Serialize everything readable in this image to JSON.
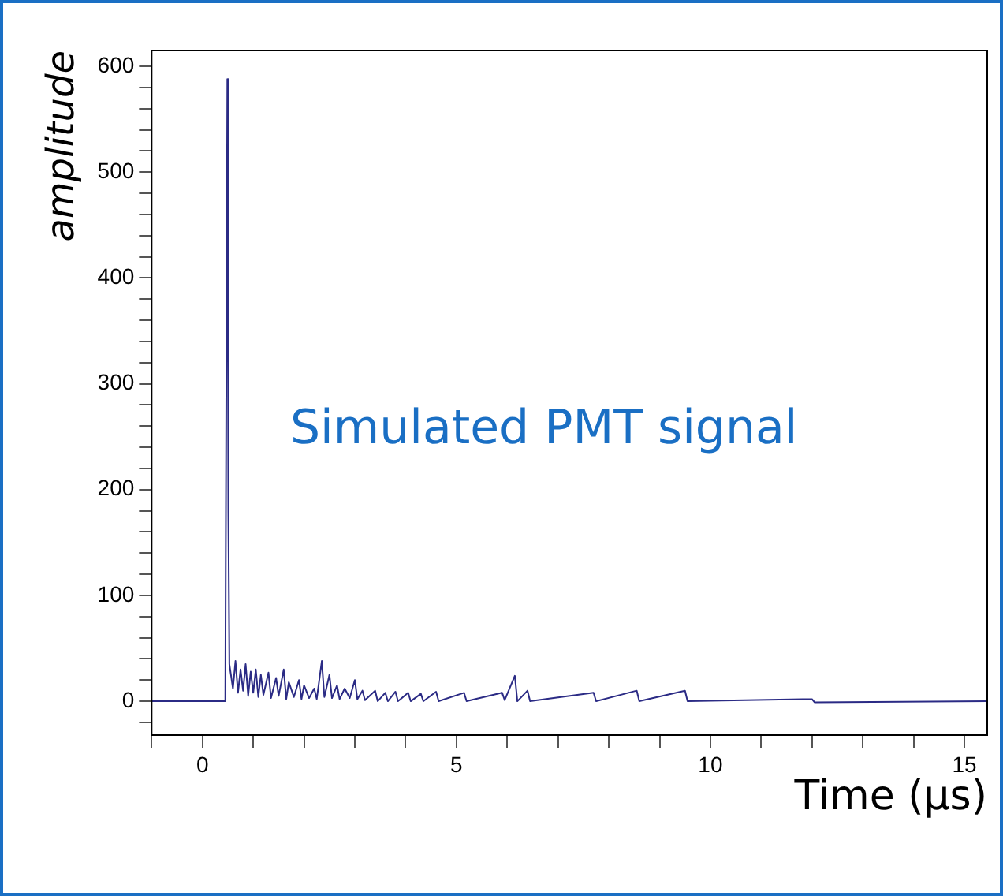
{
  "chart_data": {
    "type": "line",
    "xlabel": "Time (μs)",
    "ylabel": "amplitude",
    "annotations": [
      "Simulated PMT signal"
    ],
    "x": [
      -1,
      0.45,
      0.47,
      0.49,
      0.51,
      0.53,
      0.6,
      0.65,
      0.7,
      0.75,
      0.8,
      0.85,
      0.9,
      0.95,
      1.0,
      1.05,
      1.1,
      1.15,
      1.2,
      1.3,
      1.35,
      1.45,
      1.5,
      1.6,
      1.65,
      1.7,
      1.8,
      1.9,
      1.95,
      2.0,
      2.1,
      2.2,
      2.25,
      2.35,
      2.4,
      2.5,
      2.55,
      2.65,
      2.7,
      2.8,
      2.9,
      3.0,
      3.05,
      3.15,
      3.2,
      3.4,
      3.45,
      3.6,
      3.65,
      3.8,
      3.85,
      4.05,
      4.1,
      4.3,
      4.35,
      4.6,
      4.65,
      5.15,
      5.2,
      5.9,
      5.95,
      6.15,
      6.2,
      6.4,
      6.45,
      7.7,
      7.75,
      8.55,
      8.6,
      9.5,
      9.55,
      12,
      12.05,
      15.45
    ],
    "series": [
      {
        "color": "#2b2b85",
        "values": [
          0,
          0,
          297,
          588,
          178,
          35,
          12,
          38,
          8,
          30,
          10,
          35,
          5,
          28,
          8,
          30,
          4,
          25,
          6,
          27,
          3,
          22,
          5,
          30,
          2,
          18,
          4,
          20,
          2,
          15,
          3,
          12,
          2,
          38,
          4,
          25,
          3,
          15,
          2,
          12,
          3,
          20,
          2,
          10,
          1,
          10,
          0,
          8,
          0,
          9,
          0,
          8,
          0,
          7,
          0,
          9,
          0,
          8,
          0,
          8,
          1,
          24,
          0,
          10,
          0,
          8,
          0,
          10,
          0,
          10,
          0,
          2,
          -1,
          0
        ]
      }
    ],
    "xlim": [
      -1,
      15.45
    ],
    "ylim": [
      -32,
      615
    ],
    "xticks": [
      {
        "value": -1,
        "label": null
      },
      0,
      {
        "value": 1,
        "label": null
      },
      {
        "value": 2,
        "label": null
      },
      {
        "value": 3,
        "label": null
      },
      {
        "value": 4,
        "label": null
      },
      5,
      {
        "value": 6,
        "label": null
      },
      {
        "value": 7,
        "label": null
      },
      {
        "value": 8,
        "label": null
      },
      {
        "value": 9,
        "label": null
      },
      10,
      {
        "value": 11,
        "label": null
      },
      {
        "value": 12,
        "label": null
      },
      {
        "value": 13,
        "label": null
      },
      {
        "value": 14,
        "label": null
      },
      15
    ],
    "yticks": [
      {
        "value": -20,
        "label": null
      },
      0,
      {
        "value": 20,
        "label": null
      },
      {
        "value": 40,
        "label": null
      },
      {
        "value": 60,
        "label": null
      },
      {
        "value": 80,
        "label": null
      },
      100,
      {
        "value": 120,
        "label": null
      },
      {
        "value": 140,
        "label": null
      },
      {
        "value": 160,
        "label": null
      },
      {
        "value": 180,
        "label": null
      },
      200,
      {
        "value": 220,
        "label": null
      },
      {
        "value": 240,
        "label": null
      },
      {
        "value": 260,
        "label": null
      },
      {
        "value": 280,
        "label": null
      },
      300,
      {
        "value": 320,
        "label": null
      },
      {
        "value": 340,
        "label": null
      },
      {
        "value": 360,
        "label": null
      },
      {
        "value": 380,
        "label": null
      },
      400,
      {
        "value": 420,
        "label": null
      },
      {
        "value": 440,
        "label": null
      },
      {
        "value": 460,
        "label": null
      },
      {
        "value": 480,
        "label": null
      },
      500,
      {
        "value": 520,
        "label": null
      },
      {
        "value": 540,
        "label": null
      },
      {
        "value": 560,
        "label": null
      },
      {
        "value": 580,
        "label": null
      },
      600
    ],
    "grid": false,
    "legend": false,
    "marker": "none",
    "line_style": "solid"
  }
}
